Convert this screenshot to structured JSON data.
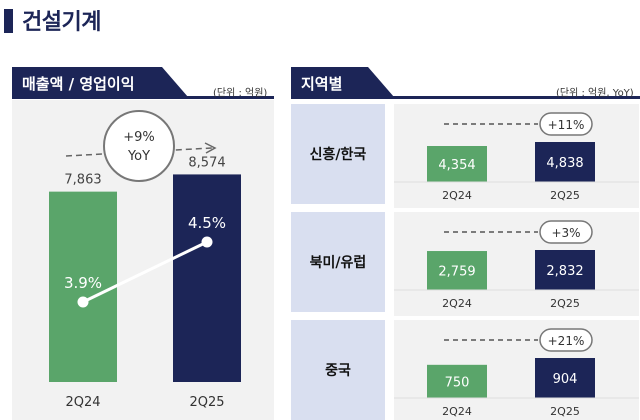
{
  "page_title": "건설기계",
  "left_panel": {
    "tab_label": "매출액 / 영업이익",
    "unit": "(단위 : 억원)"
  },
  "right_panel": {
    "tab_label": "지역별",
    "unit": "(단위 : 억원, YoY)"
  },
  "colors": {
    "navy": "#1c2557",
    "green": "#5aa56a",
    "panel": "#f2f2f2",
    "label_bg": "#d9dff0"
  },
  "chart_data": [
    {
      "type": "bar",
      "categories": [
        "2Q24",
        "2Q25"
      ],
      "series": [
        {
          "values": [
            7863,
            8574
          ],
          "labels": [
            "7,863",
            "8,574"
          ]
        },
        {
          "values": [
            3.9,
            4.5
          ],
          "labels": [
            "3.9%",
            "4.5%"
          ]
        }
      ],
      "annotation": [
        "+9%",
        "YoY"
      ],
      "colors": [
        "#5aa56a",
        "#1c2557"
      ]
    },
    {
      "type": "bar",
      "region": "신흥/한국",
      "categories": [
        "2Q24",
        "2Q25"
      ],
      "values": [
        4354,
        4838
      ],
      "labels": [
        "4,354",
        "4,838"
      ],
      "growth": "+11%"
    },
    {
      "type": "bar",
      "region": "북미/유럽",
      "categories": [
        "2Q24",
        "2Q25"
      ],
      "values": [
        2759,
        2832
      ],
      "labels": [
        "2,759",
        "2,832"
      ],
      "growth": "+3%"
    },
    {
      "type": "bar",
      "region": "중국",
      "categories": [
        "2Q24",
        "2Q25"
      ],
      "values": [
        750,
        904
      ],
      "labels": [
        "750",
        "904"
      ],
      "growth": "+21%"
    }
  ]
}
